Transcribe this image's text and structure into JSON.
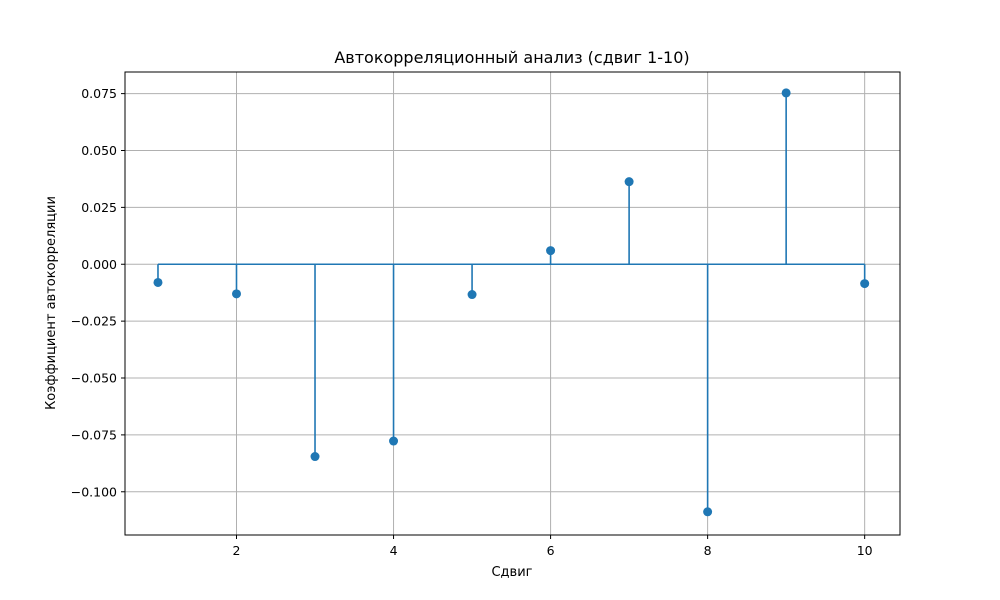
{
  "chart_data": {
    "type": "stem",
    "title": "Автокорреляционный анализ (сдвиг 1-10)",
    "xlabel": "Сдвиг",
    "ylabel": "Коэффициент автокорреляции",
    "x": [
      1,
      2,
      3,
      4,
      5,
      6,
      7,
      8,
      9,
      10
    ],
    "values": [
      -0.008,
      -0.013,
      -0.0845,
      -0.0777,
      -0.0133,
      0.006,
      0.0363,
      -0.1088,
      0.0753,
      -0.0085
    ],
    "baseline": 0,
    "xlim": [
      0.58,
      10.45
    ],
    "ylim": [
      -0.119,
      0.0845
    ],
    "xticks": [
      2,
      4,
      6,
      8,
      10
    ],
    "xtick_labels": [
      "2",
      "4",
      "6",
      "8",
      "10"
    ],
    "yticks": [
      -0.1,
      -0.075,
      -0.05,
      -0.025,
      0,
      0.025,
      0.05,
      0.075
    ],
    "ytick_labels": [
      "−0.100",
      "−0.075",
      "−0.050",
      "−0.025",
      "0.000",
      "0.025",
      "0.050",
      "0.075"
    ],
    "grid": true,
    "legend": "none",
    "colors": {
      "series": "#1f77b4",
      "grid": "#b0b0b0"
    }
  }
}
